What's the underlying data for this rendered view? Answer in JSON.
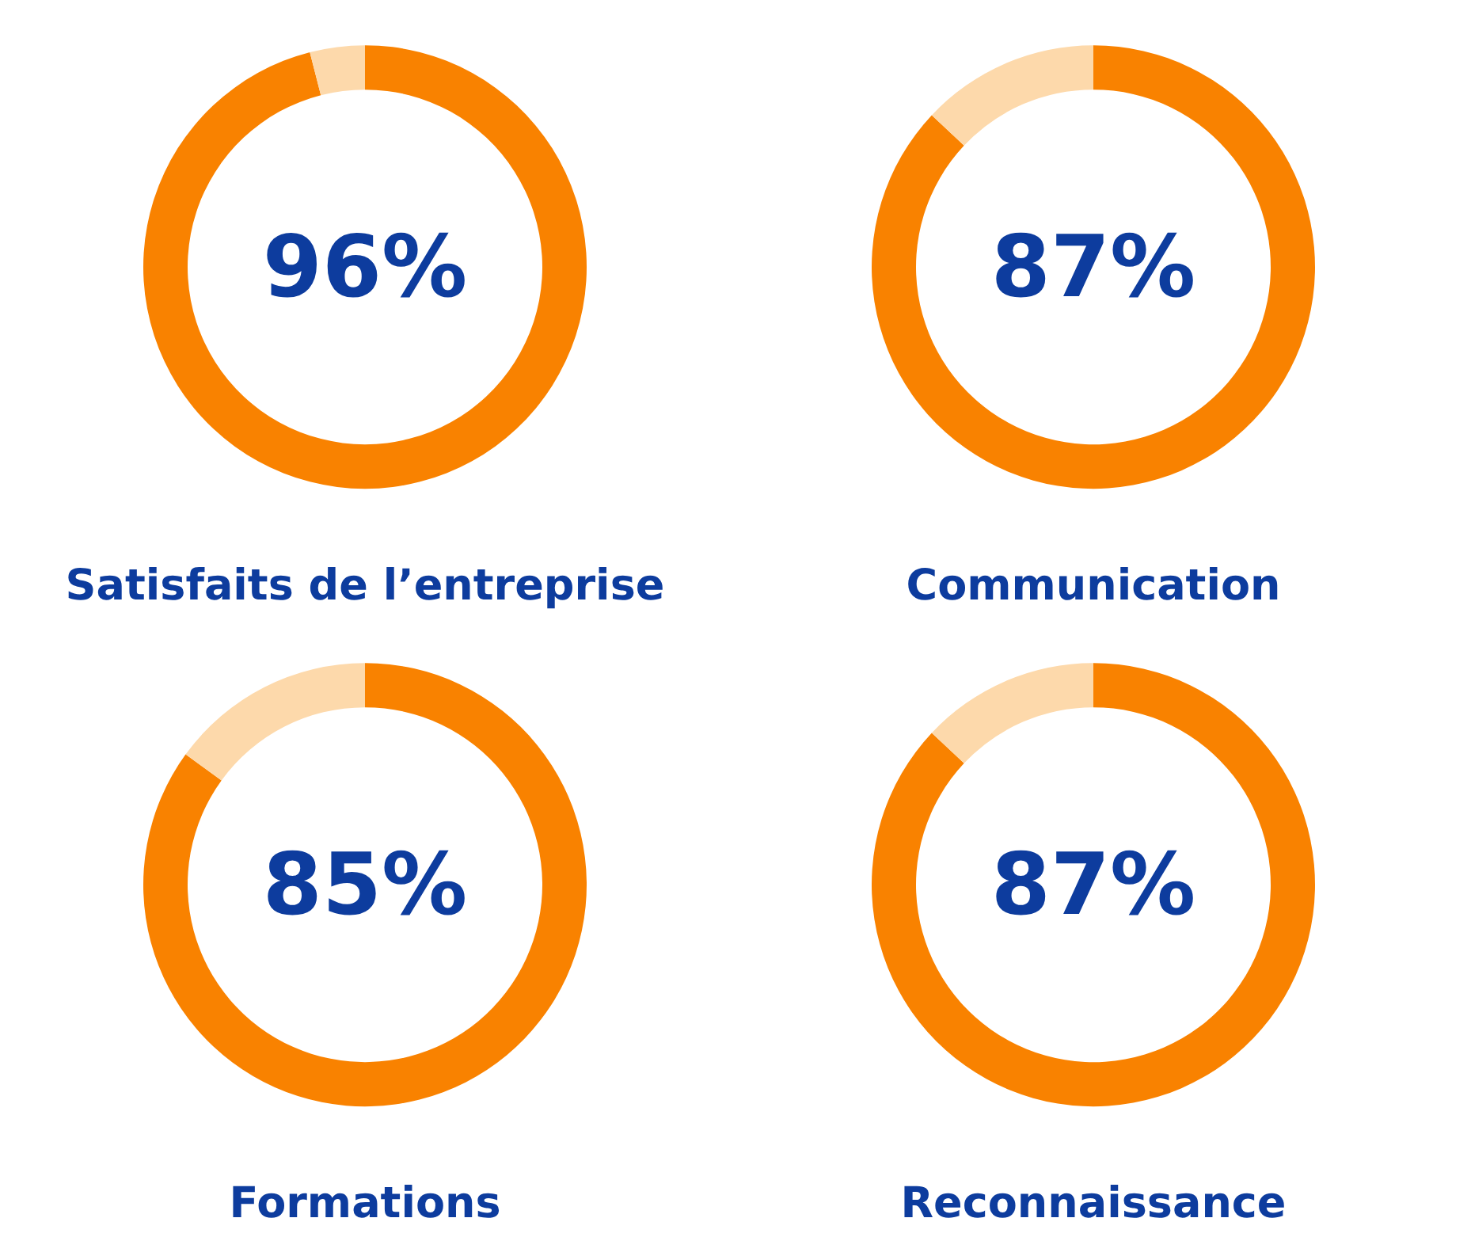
{
  "chart_data": [
    {
      "type": "donut",
      "title": "Satisfaits de l’entreprise",
      "categories": [
        null,
        null
      ],
      "values": [
        96,
        4
      ],
      "colors": [
        "#f98200",
        "#fdd9ab"
      ],
      "value_labels": [
        "96%",
        null
      ]
    },
    {
      "type": "donut",
      "title": "Communication",
      "categories": [
        null,
        null
      ],
      "values": [
        87,
        13
      ],
      "colors": [
        "#f98200",
        "#fdd9ab"
      ],
      "value_labels": [
        "87%",
        null
      ]
    },
    {
      "type": "donut",
      "title": "Formations",
      "categories": [
        null,
        null
      ],
      "values": [
        85,
        15
      ],
      "colors": [
        "#f98200",
        "#fdd9ab"
      ],
      "value_labels": [
        "85%",
        null
      ]
    },
    {
      "type": "donut",
      "title": "Reconnaissance",
      "categories": [
        null,
        null
      ],
      "values": [
        87,
        13
      ],
      "colors": [
        "#f98200",
        "#fdd9ab"
      ],
      "value_labels": [
        "87%",
        null
      ]
    }
  ]
}
